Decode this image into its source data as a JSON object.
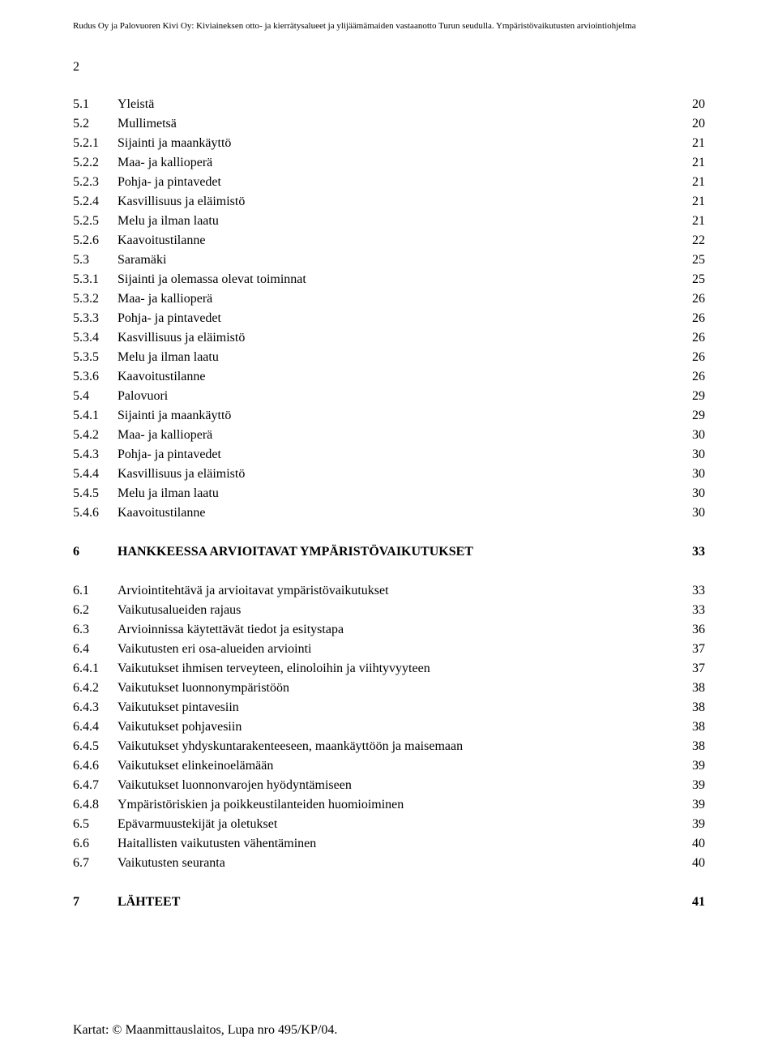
{
  "header": "Rudus Oy ja Palovuoren Kivi Oy: Kiviaineksen otto- ja kierrätysalueet ja ylijäämämaiden vastaanotto Turun seudulla. Ympäristövaikutusten arviointiohjelma",
  "page_number": "2",
  "toc": [
    {
      "num": "5.1",
      "title": "Yleistä",
      "page": "20"
    },
    {
      "num": "5.2",
      "title": "Mullimetsä",
      "page": "20"
    },
    {
      "num": "5.2.1",
      "title": "Sijainti ja maankäyttö",
      "page": "21"
    },
    {
      "num": "5.2.2",
      "title": "Maa- ja kallioperä",
      "page": "21"
    },
    {
      "num": "5.2.3",
      "title": "Pohja- ja pintavedet",
      "page": "21"
    },
    {
      "num": "5.2.4",
      "title": "Kasvillisuus ja eläimistö",
      "page": "21"
    },
    {
      "num": "5.2.5",
      "title": "Melu ja ilman laatu",
      "page": "21"
    },
    {
      "num": "5.2.6",
      "title": "Kaavoitustilanne",
      "page": "22"
    },
    {
      "num": "5.3",
      "title": "Saramäki",
      "page": "25"
    },
    {
      "num": "5.3.1",
      "title": "Sijainti ja olemassa olevat toiminnat",
      "page": "25"
    },
    {
      "num": "5.3.2",
      "title": "Maa- ja kallioperä",
      "page": "26"
    },
    {
      "num": "5.3.3",
      "title": "Pohja- ja pintavedet",
      "page": "26"
    },
    {
      "num": "5.3.4",
      "title": "Kasvillisuus ja eläimistö",
      "page": "26"
    },
    {
      "num": "5.3.5",
      "title": "Melu ja ilman laatu",
      "page": "26"
    },
    {
      "num": "5.3.6",
      "title": "Kaavoitustilanne",
      "page": "26"
    },
    {
      "num": "5.4",
      "title": "Palovuori",
      "page": "29"
    },
    {
      "num": "5.4.1",
      "title": "Sijainti ja maankäyttö",
      "page": "29"
    },
    {
      "num": "5.4.2",
      "title": "Maa- ja kallioperä",
      "page": "30"
    },
    {
      "num": "5.4.3",
      "title": "Pohja- ja pintavedet",
      "page": "30"
    },
    {
      "num": "5.4.4",
      "title": "Kasvillisuus ja eläimistö",
      "page": "30"
    },
    {
      "num": "5.4.5",
      "title": "Melu ja ilman laatu",
      "page": "30"
    },
    {
      "num": "5.4.6",
      "title": "Kaavoitustilanne",
      "page": "30"
    }
  ],
  "section6": {
    "num": "6",
    "title": "HANKKEESSA ARVIOITAVAT YMPÄRISTÖVAIKUTUKSET",
    "page": "33"
  },
  "toc6": [
    {
      "num": "6.1",
      "title": "Arviointitehtävä ja arvioitavat ympäristövaikutukset",
      "page": "33"
    },
    {
      "num": "6.2",
      "title": "Vaikutusalueiden rajaus",
      "page": "33"
    },
    {
      "num": "6.3",
      "title": "Arvioinnissa käytettävät tiedot ja esitystapa",
      "page": "36"
    },
    {
      "num": "6.4",
      "title": "Vaikutusten eri osa-alueiden arviointi",
      "page": "37"
    },
    {
      "num": "6.4.1",
      "title": "Vaikutukset ihmisen terveyteen, elinoloihin ja viihtyvyyteen",
      "page": "37"
    },
    {
      "num": "6.4.2",
      "title": "Vaikutukset luonnonympäristöön",
      "page": "38"
    },
    {
      "num": "6.4.3",
      "title": "Vaikutukset pintavesiin",
      "page": "38"
    },
    {
      "num": "6.4.4",
      "title": "Vaikutukset pohjavesiin",
      "page": "38"
    },
    {
      "num": "6.4.5",
      "title": "Vaikutukset yhdyskuntarakenteeseen, maankäyttöön ja maisemaan",
      "page": "38"
    },
    {
      "num": "6.4.6",
      "title": "Vaikutukset elinkeinoelämään",
      "page": "39"
    },
    {
      "num": "6.4.7",
      "title": "Vaikutukset luonnonvarojen hyödyntämiseen",
      "page": "39"
    },
    {
      "num": "6.4.8",
      "title": "Ympäristöriskien ja poikkeustilanteiden huomioiminen",
      "page": "39"
    },
    {
      "num": "6.5",
      "title": "Epävarmuustekijät ja oletukset",
      "page": "39"
    },
    {
      "num": "6.6",
      "title": "Haitallisten vaikutusten vähentäminen",
      "page": "40"
    },
    {
      "num": "6.7",
      "title": "Vaikutusten seuranta",
      "page": "40"
    }
  ],
  "section7": {
    "num": "7",
    "title": "LÄHTEET",
    "page": "41"
  },
  "footer": "Kartat: © Maanmittauslaitos, Lupa nro 495/KP/04."
}
